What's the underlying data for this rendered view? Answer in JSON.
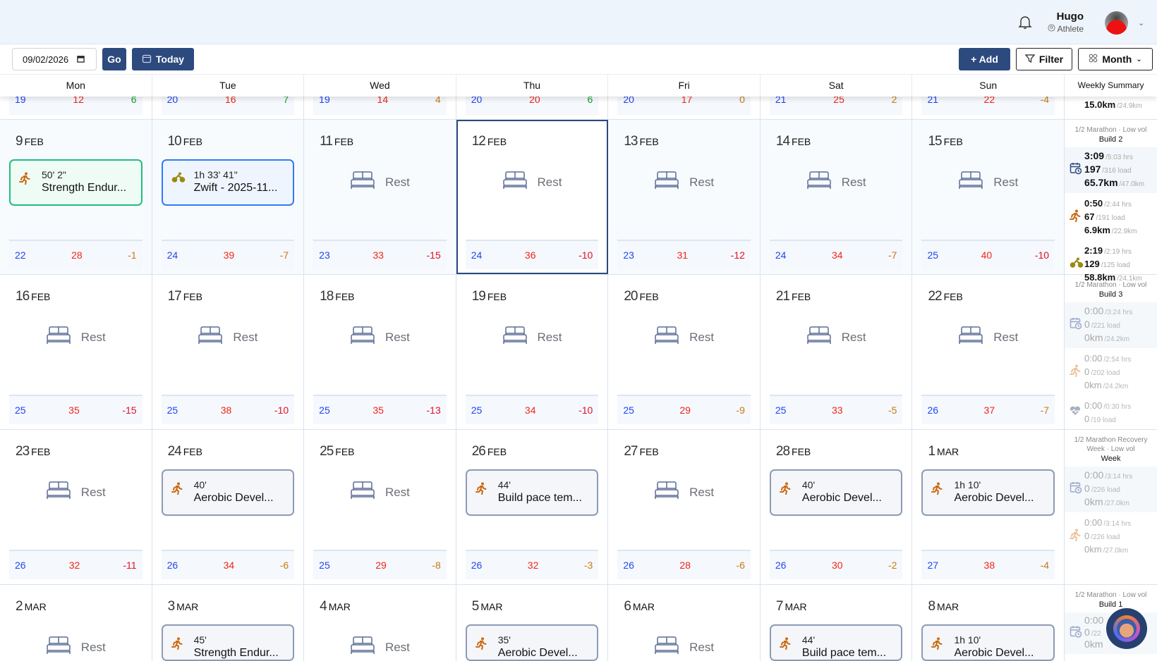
{
  "header": {
    "user_name": "Hugo",
    "user_role": "Athlete"
  },
  "toolbar": {
    "date_value": "09/02/2026",
    "go_label": "Go",
    "today_label": "Today",
    "add_label": "+ Add",
    "filter_label": "Filter",
    "view_label": "Month"
  },
  "day_headers": [
    "Mon",
    "Tue",
    "Wed",
    "Thu",
    "Fri",
    "Sat",
    "Sun"
  ],
  "weekly_summary_label": "Weekly Summary",
  "colors": {
    "navy": "#2d4a7f",
    "fitness": "#1f45f5",
    "fatigue": "#f0261a",
    "form_positive": "#12a02a",
    "form_small": "#c97a12",
    "form_negative": "#e0102a",
    "completed_run": "#1dbf7e",
    "completed_bike": "#2f7bf5"
  },
  "weeks": [
    {
      "days": [
        {
          "stats": [
            "19",
            "12",
            "6"
          ]
        },
        {
          "stats": [
            "20",
            "16",
            "7"
          ]
        },
        {
          "stats": [
            "19",
            "14",
            "4"
          ]
        },
        {
          "stats": [
            "20",
            "20",
            "6"
          ]
        },
        {
          "stats": [
            "20",
            "17",
            "0"
          ]
        },
        {
          "stats": [
            "21",
            "25",
            "2"
          ]
        },
        {
          "stats": [
            "21",
            "22",
            "-4"
          ]
        }
      ],
      "summary": {
        "partial_total": {
          "value": "15.0km",
          "target": "/24.9km"
        }
      }
    },
    {
      "past": true,
      "days": [
        {
          "num": "9",
          "mon": "FEB",
          "type": "workout",
          "sport": "run",
          "style": "green",
          "duration": "50' 2\"",
          "title": "Strength Endur...",
          "stats": [
            "22",
            "28",
            "-1"
          ]
        },
        {
          "num": "10",
          "mon": "FEB",
          "type": "workout",
          "sport": "bike",
          "style": "blue",
          "duration": "1h 33' 41\"",
          "title": "Zwift - 2025-11...",
          "stats": [
            "24",
            "39",
            "-7"
          ]
        },
        {
          "num": "11",
          "mon": "FEB",
          "type": "rest",
          "label": "Rest",
          "stats": [
            "23",
            "33",
            "-15"
          ]
        },
        {
          "num": "12",
          "mon": "FEB",
          "type": "rest",
          "label": "Rest",
          "selected": true,
          "stats": [
            "24",
            "36",
            "-10"
          ]
        },
        {
          "num": "13",
          "mon": "FEB",
          "type": "rest",
          "label": "Rest",
          "stats": [
            "23",
            "31",
            "-12"
          ]
        },
        {
          "num": "14",
          "mon": "FEB",
          "type": "rest",
          "label": "Rest",
          "stats": [
            "24",
            "34",
            "-7"
          ]
        },
        {
          "num": "15",
          "mon": "FEB",
          "type": "rest",
          "label": "Rest",
          "stats": [
            "25",
            "40",
            "-10"
          ]
        }
      ],
      "summary": {
        "phase": "1/2 Marathon · Low vol",
        "build": "Build 2",
        "dim": false,
        "total": [
          [
            "3:09",
            "/5:03 hrs"
          ],
          [
            "197",
            "/316 load"
          ],
          [
            "65.7km",
            "/47.0km"
          ]
        ],
        "sports": [
          {
            "sport": "run",
            "lines": [
              [
                "0:50",
                "/2:44 hrs"
              ],
              [
                "67",
                "/191 load"
              ],
              [
                "6.9km",
                "/22.9km"
              ]
            ]
          },
          {
            "sport": "bike",
            "lines": [
              [
                "2:19",
                "/2:19 hrs"
              ],
              [
                "129",
                "/125 load"
              ],
              [
                "58.8km",
                "/24.1km"
              ]
            ]
          }
        ]
      }
    },
    {
      "days": [
        {
          "num": "16",
          "mon": "FEB",
          "type": "rest",
          "label": "Rest",
          "stats": [
            "25",
            "35",
            "-15"
          ]
        },
        {
          "num": "17",
          "mon": "FEB",
          "type": "rest",
          "label": "Rest",
          "stats": [
            "25",
            "38",
            "-10"
          ]
        },
        {
          "num": "18",
          "mon": "FEB",
          "type": "rest",
          "label": "Rest",
          "stats": [
            "25",
            "35",
            "-13"
          ]
        },
        {
          "num": "19",
          "mon": "FEB",
          "type": "rest",
          "label": "Rest",
          "stats": [
            "25",
            "34",
            "-10"
          ]
        },
        {
          "num": "20",
          "mon": "FEB",
          "type": "rest",
          "label": "Rest",
          "stats": [
            "25",
            "29",
            "-9"
          ]
        },
        {
          "num": "21",
          "mon": "FEB",
          "type": "rest",
          "label": "Rest",
          "stats": [
            "25",
            "33",
            "-5"
          ]
        },
        {
          "num": "22",
          "mon": "FEB",
          "type": "rest",
          "label": "Rest",
          "stats": [
            "26",
            "37",
            "-7"
          ]
        }
      ],
      "summary": {
        "phase": "1/2 Marathon · Low vol",
        "build": "Build 3",
        "dim": true,
        "total": [
          [
            "0:00",
            "/3:24 hrs"
          ],
          [
            "0",
            "/221 load"
          ],
          [
            "0km",
            "/24.2km"
          ]
        ],
        "sports": [
          {
            "sport": "run",
            "lines": [
              [
                "0:00",
                "/2:54 hrs"
              ],
              [
                "0",
                "/202 load"
              ],
              [
                "0km",
                "/24.2km"
              ]
            ]
          },
          {
            "sport": "strength",
            "lines": [
              [
                "0:00",
                "/0:30 hrs"
              ],
              [
                "0",
                "/19 load"
              ]
            ]
          }
        ]
      }
    },
    {
      "days": [
        {
          "num": "23",
          "mon": "FEB",
          "type": "rest",
          "label": "Rest",
          "stats": [
            "26",
            "32",
            "-11"
          ]
        },
        {
          "num": "24",
          "mon": "FEB",
          "type": "workout",
          "sport": "run",
          "style": "planned",
          "duration": "40'",
          "title": "Aerobic Devel...",
          "stats": [
            "26",
            "34",
            "-6"
          ]
        },
        {
          "num": "25",
          "mon": "FEB",
          "type": "rest",
          "label": "Rest",
          "stats": [
            "25",
            "29",
            "-8"
          ]
        },
        {
          "num": "26",
          "mon": "FEB",
          "type": "workout",
          "sport": "run",
          "style": "planned",
          "duration": "44'",
          "title": "Build pace tem...",
          "stats": [
            "26",
            "32",
            "-3"
          ]
        },
        {
          "num": "27",
          "mon": "FEB",
          "type": "rest",
          "label": "Rest",
          "stats": [
            "26",
            "28",
            "-6"
          ]
        },
        {
          "num": "28",
          "mon": "FEB",
          "type": "workout",
          "sport": "run",
          "style": "planned",
          "duration": "40'",
          "title": "Aerobic Devel...",
          "stats": [
            "26",
            "30",
            "-2"
          ]
        },
        {
          "num": "1",
          "mon": "MAR",
          "type": "workout",
          "sport": "run",
          "style": "planned",
          "duration": "1h 10'",
          "title": "Aerobic Devel...",
          "stats": [
            "27",
            "38",
            "-4"
          ]
        }
      ],
      "summary": {
        "phase": "1/2 Marathon Recovery Week · Low vol",
        "build": "Week",
        "dim": true,
        "total": [
          [
            "0:00",
            "/3:14 hrs"
          ],
          [
            "0",
            "/226 load"
          ],
          [
            "0km",
            "/27.0km"
          ]
        ],
        "sports": [
          {
            "sport": "run",
            "lines": [
              [
                "0:00",
                "/3:14 hrs"
              ],
              [
                "0",
                "/226 load"
              ],
              [
                "0km",
                "/27.0km"
              ]
            ]
          }
        ]
      }
    },
    {
      "days": [
        {
          "num": "2",
          "mon": "MAR",
          "type": "rest",
          "label": "Rest"
        },
        {
          "num": "3",
          "mon": "MAR",
          "type": "workout",
          "sport": "run",
          "style": "planned",
          "duration": "45'",
          "title": "Strength Endur..."
        },
        {
          "num": "4",
          "mon": "MAR",
          "type": "rest",
          "label": "Rest"
        },
        {
          "num": "5",
          "mon": "MAR",
          "type": "workout",
          "sport": "run",
          "style": "planned",
          "duration": "35'",
          "title": "Aerobic Devel..."
        },
        {
          "num": "6",
          "mon": "MAR",
          "type": "rest",
          "label": "Rest"
        },
        {
          "num": "7",
          "mon": "MAR",
          "type": "workout",
          "sport": "run",
          "style": "planned",
          "duration": "44'",
          "title": "Build pace tem..."
        },
        {
          "num": "8",
          "mon": "MAR",
          "type": "workout",
          "sport": "run",
          "style": "planned",
          "duration": "1h 10'",
          "title": "Aerobic Devel..."
        }
      ],
      "summary": {
        "phase": "1/2 Marathon · Low vol",
        "build": "Build 1",
        "dim": true,
        "total": [
          [
            "0:00",
            ""
          ],
          [
            "0",
            "/22"
          ],
          [
            "0km",
            ""
          ]
        ],
        "sports": []
      }
    }
  ]
}
